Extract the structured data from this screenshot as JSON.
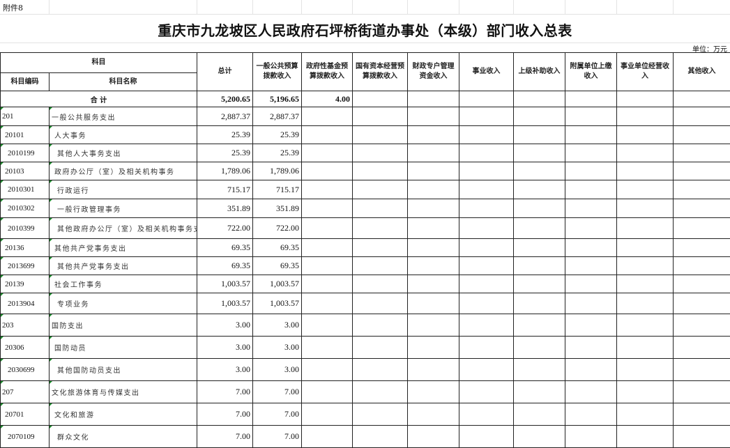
{
  "attachment_label": "附件8",
  "title": "重庆市九龙坡区人民政府石坪桥街道办事处（本级）部门收入总表",
  "unit": "单位：万元",
  "headers": {
    "subject": "科目",
    "subject_code": "科目编码",
    "subject_name": "科目名称",
    "total": "总计",
    "general_budget": "一般公共预算拨款收入",
    "gov_fund": "政府性基金预算拨款收入",
    "state_capital": "国有资本经营预算拨款收入",
    "fiscal_account": "财政专户管理资金收入",
    "business_income": "事业收入",
    "superior_subsidy": "上级补助收入",
    "affiliated_payment": "附属单位上缴收入",
    "operating_income": "事业单位经营收入",
    "other_income": "其他收入"
  },
  "total_row": {
    "label": "合 计",
    "total": "5,200.65",
    "general_budget": "5,196.65",
    "gov_fund": "4.00"
  },
  "rows": [
    {
      "code": "201",
      "name": "一般公共服务支出",
      "level": 0,
      "total": "2,887.37",
      "general_budget": "2,887.37"
    },
    {
      "code": "20101",
      "name": "人大事务",
      "level": 1,
      "total": "25.39",
      "general_budget": "25.39"
    },
    {
      "code": "2010199",
      "name": "其他人大事务支出",
      "level": 2,
      "total": "25.39",
      "general_budget": "25.39"
    },
    {
      "code": "20103",
      "name": "政府办公厅（室）及相关机构事务",
      "level": 1,
      "total": "1,789.06",
      "general_budget": "1,789.06"
    },
    {
      "code": "2010301",
      "name": "行政运行",
      "level": 2,
      "total": "715.17",
      "general_budget": "715.17"
    },
    {
      "code": "2010302",
      "name": "一般行政管理事务",
      "level": 2,
      "total": "351.89",
      "general_budget": "351.89"
    },
    {
      "code": "2010399",
      "name": "其他政府办公厅（室）及相关机构事务支出",
      "level": 2,
      "total": "722.00",
      "general_budget": "722.00"
    },
    {
      "code": "20136",
      "name": "其他共产党事务支出",
      "level": 1,
      "total": "69.35",
      "general_budget": "69.35"
    },
    {
      "code": "2013699",
      "name": "其他共产党事务支出",
      "level": 2,
      "total": "69.35",
      "general_budget": "69.35"
    },
    {
      "code": "20139",
      "name": "社会工作事务",
      "level": 1,
      "total": "1,003.57",
      "general_budget": "1,003.57"
    },
    {
      "code": "2013904",
      "name": "专项业务",
      "level": 2,
      "total": "1,003.57",
      "general_budget": "1,003.57"
    },
    {
      "code": "203",
      "name": "国防支出",
      "level": 0,
      "total": "3.00",
      "general_budget": "3.00"
    },
    {
      "code": "20306",
      "name": "国防动员",
      "level": 1,
      "total": "3.00",
      "general_budget": "3.00"
    },
    {
      "code": "2030699",
      "name": "其他国防动员支出",
      "level": 2,
      "total": "3.00",
      "general_budget": "3.00"
    },
    {
      "code": "207",
      "name": "文化旅游体育与传媒支出",
      "level": 0,
      "total": "7.00",
      "general_budget": "7.00"
    },
    {
      "code": "20701",
      "name": "文化和旅游",
      "level": 1,
      "total": "7.00",
      "general_budget": "7.00"
    },
    {
      "code": "2070109",
      "name": "群众文化",
      "level": 2,
      "total": "7.00",
      "general_budget": "7.00"
    }
  ]
}
